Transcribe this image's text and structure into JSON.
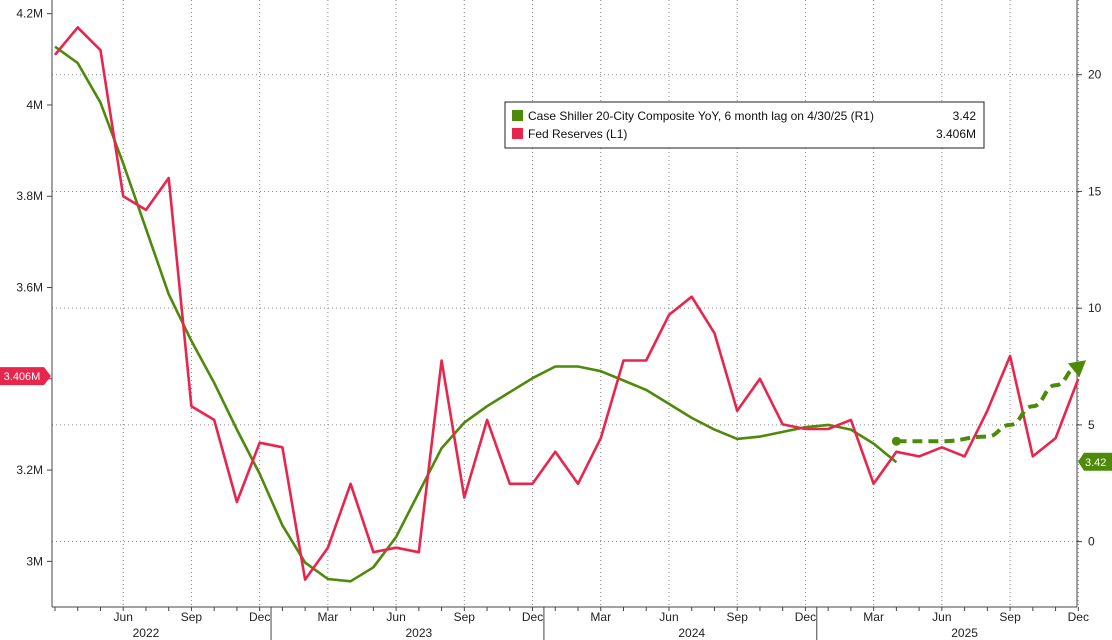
{
  "chart_data": {
    "type": "line",
    "x_start": "2022-03",
    "x_end": "2025-12",
    "left_axis": {
      "ylim": [
        2.9,
        4.23
      ],
      "ticks": [
        3.0,
        3.2,
        3.4,
        3.6,
        3.8,
        4.0,
        4.2
      ],
      "tick_labels": [
        "3M",
        "3.2M",
        "3.4M",
        "3.6M",
        "3.8M",
        "4M",
        "4.2M"
      ]
    },
    "right_axis": {
      "ylim": [
        -2.8,
        23.2
      ],
      "ticks": [
        0,
        5,
        10,
        15,
        20
      ],
      "tick_labels": [
        "0",
        "5",
        "10",
        "15",
        "20"
      ]
    },
    "x_ticks": [
      {
        "label": "Jun",
        "month": "2022-06"
      },
      {
        "label": "Sep",
        "month": "2022-09"
      },
      {
        "label": "Dec",
        "month": "2022-12"
      },
      {
        "label": "Mar",
        "month": "2023-03"
      },
      {
        "label": "Jun",
        "month": "2023-06"
      },
      {
        "label": "Sep",
        "month": "2023-09"
      },
      {
        "label": "Dec",
        "month": "2023-12"
      },
      {
        "label": "Mar",
        "month": "2024-03"
      },
      {
        "label": "Jun",
        "month": "2024-06"
      },
      {
        "label": "Sep",
        "month": "2024-09"
      },
      {
        "label": "Dec",
        "month": "2024-12"
      },
      {
        "label": "Mar",
        "month": "2025-03"
      },
      {
        "label": "Jun",
        "month": "2025-06"
      },
      {
        "label": "Sep",
        "month": "2025-09"
      },
      {
        "label": "Dec",
        "month": "2025-12"
      }
    ],
    "year_labels": [
      {
        "label": "2022",
        "month": "2022-07"
      },
      {
        "label": "2023",
        "month": "2023-07"
      },
      {
        "label": "2024",
        "month": "2024-07"
      },
      {
        "label": "2025",
        "month": "2025-07"
      }
    ],
    "year_dividers": [
      "2023-01",
      "2024-01",
      "2025-01"
    ],
    "grid": true,
    "legend_position": "top-center",
    "series": [
      {
        "name": "Case Shiller 20-City Composite YoY, 6 month lag on 4/30/25 (R1)",
        "last_value": "3.42",
        "color": "#4d8a0a",
        "axis": "right",
        "x": [
          "2022-03",
          "2022-04",
          "2022-05",
          "2022-06",
          "2022-07",
          "2022-08",
          "2022-09",
          "2022-10",
          "2022-11",
          "2022-12",
          "2023-01",
          "2023-02",
          "2023-03",
          "2023-04",
          "2023-05",
          "2023-06",
          "2023-07",
          "2023-08",
          "2023-09",
          "2023-10",
          "2023-11",
          "2023-12",
          "2024-01",
          "2024-02",
          "2024-03",
          "2024-04",
          "2024-05",
          "2024-06",
          "2024-07",
          "2024-08",
          "2024-09",
          "2024-10",
          "2024-11",
          "2024-12",
          "2025-01",
          "2025-02",
          "2025-03",
          "2025-04"
        ],
        "values": [
          21.2,
          20.5,
          18.8,
          16.2,
          13.4,
          10.6,
          8.6,
          6.8,
          4.8,
          2.9,
          0.7,
          -0.9,
          -1.6,
          -1.7,
          -1.1,
          0.2,
          2.1,
          4.0,
          5.1,
          5.8,
          6.4,
          7.0,
          7.5,
          7.5,
          7.3,
          6.9,
          6.5,
          5.9,
          5.3,
          4.8,
          4.4,
          4.5,
          4.7,
          4.9,
          5.0,
          4.8,
          4.2,
          3.4
        ]
      },
      {
        "name": "Fed Reserves (L1)",
        "last_value": "3.406M",
        "color": "#e8254d",
        "axis": "left",
        "x": [
          "2022-03",
          "2022-04",
          "2022-05",
          "2022-06",
          "2022-07",
          "2022-08",
          "2022-09",
          "2022-10",
          "2022-11",
          "2022-12",
          "2023-01",
          "2023-02",
          "2023-03",
          "2023-04",
          "2023-05",
          "2023-06",
          "2023-07",
          "2023-08",
          "2023-09",
          "2023-10",
          "2023-11",
          "2023-12",
          "2024-01",
          "2024-02",
          "2024-03",
          "2024-04",
          "2024-05",
          "2024-06",
          "2024-07",
          "2024-08",
          "2024-09",
          "2024-10",
          "2024-11",
          "2024-12",
          "2025-01",
          "2025-02",
          "2025-03",
          "2025-04",
          "2025-05",
          "2025-06",
          "2025-07",
          "2025-08",
          "2025-09",
          "2025-10",
          "2025-11",
          "2025-12"
        ],
        "values": [
          4.11,
          4.17,
          4.12,
          3.8,
          3.77,
          3.84,
          3.34,
          3.31,
          3.13,
          3.26,
          3.25,
          2.96,
          3.03,
          3.17,
          3.02,
          3.03,
          3.02,
          3.44,
          3.14,
          3.31,
          3.17,
          3.17,
          3.24,
          3.17,
          3.27,
          3.44,
          3.44,
          3.54,
          3.58,
          3.5,
          3.33,
          3.4,
          3.3,
          3.29,
          3.29,
          3.31,
          3.17,
          3.24,
          3.23,
          3.25,
          3.23,
          3.33,
          3.45,
          3.23,
          3.27,
          3.4
        ]
      }
    ],
    "projection": {
      "color": "#4d8a0a",
      "x": [
        "2025-04",
        "2025-06",
        "2025-08",
        "2025-09",
        "2025-10",
        "2025-11",
        "2025-12"
      ],
      "values": [
        4.3,
        4.3,
        4.5,
        5.0,
        5.8,
        6.7,
        7.5
      ]
    },
    "value_tags": {
      "left": {
        "text": "3.406M",
        "value": 3.406,
        "color": "#e8254d"
      },
      "right": {
        "text": "3.42",
        "value": 3.42,
        "color": "#4d8a0a"
      }
    }
  }
}
